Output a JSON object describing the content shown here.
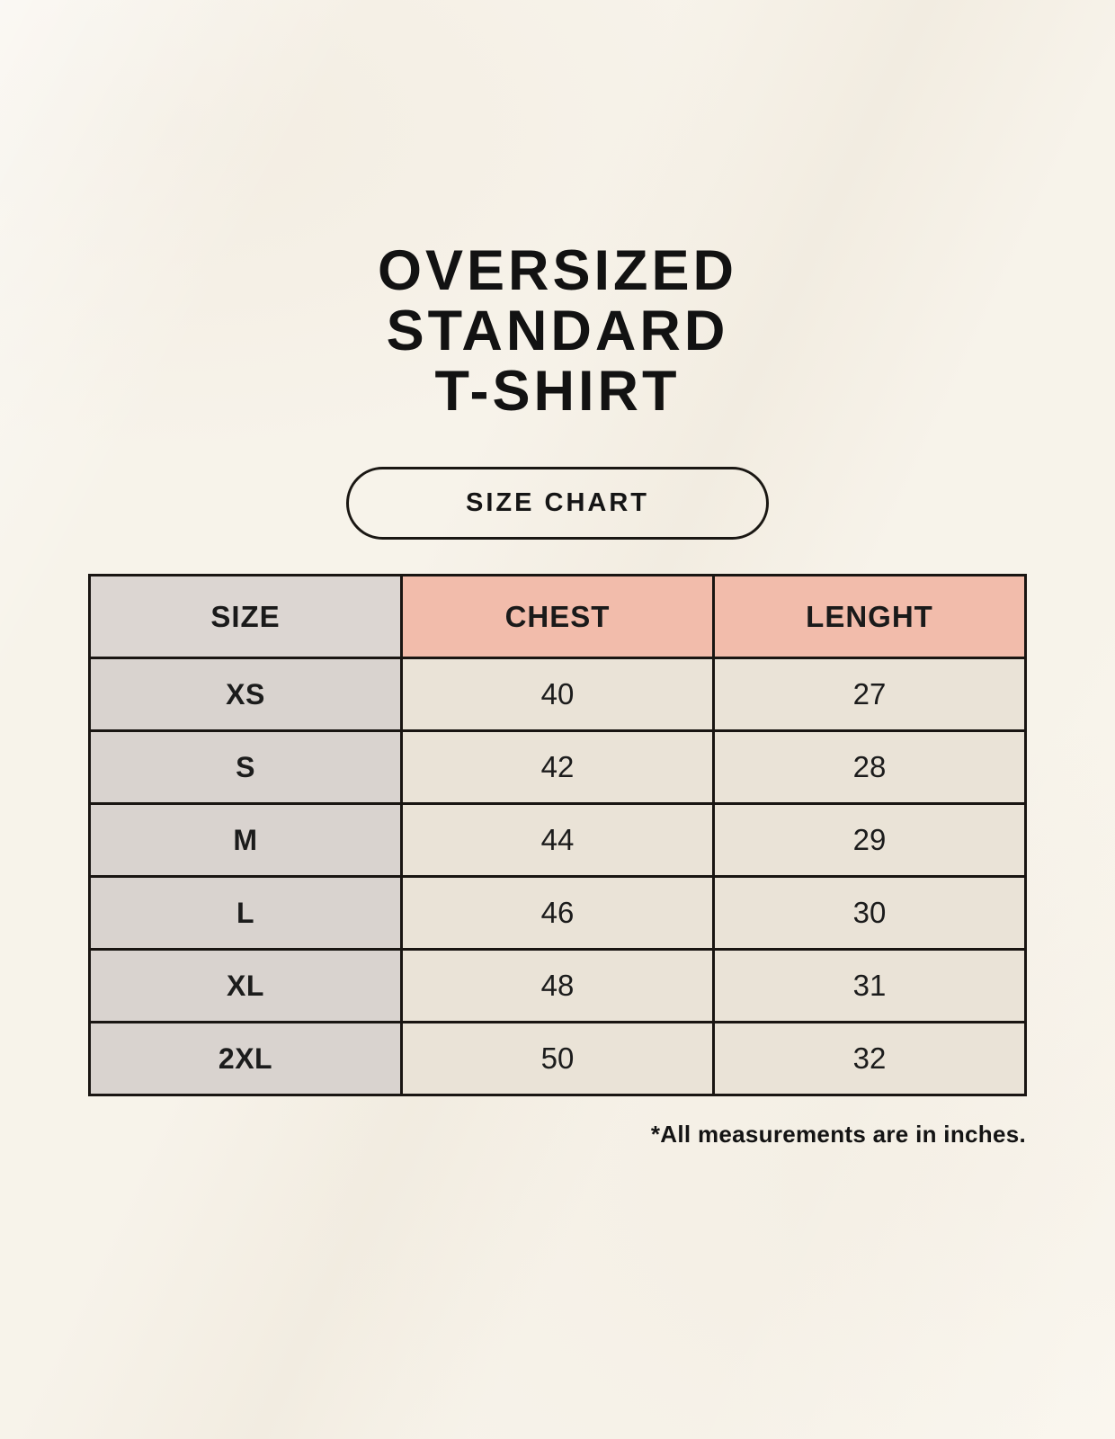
{
  "header": {
    "title_lines": [
      "OVERSIZED",
      "STANDARD",
      "T-SHIRT"
    ],
    "size_chart_label": "SIZE CHART"
  },
  "table": {
    "columns": [
      "SIZE",
      "CHEST",
      "LENGHT"
    ],
    "rows": [
      [
        "XS",
        "40",
        "27"
      ],
      [
        "S",
        "42",
        "28"
      ],
      [
        "M",
        "44",
        "29"
      ],
      [
        "L",
        "46",
        "30"
      ],
      [
        "XL",
        "48",
        "31"
      ],
      [
        "2XL",
        "50",
        "32"
      ]
    ],
    "units_note": "*All measurements are in inches."
  },
  "colors": {
    "background": "#f7f3ea",
    "table_border": "#191512",
    "size_header_bg": "#dcd6d2",
    "accent_header_bg": "#f2bcab",
    "size_column_bg": "#d9d3cf",
    "cell_bg": "#eae3d7",
    "text": "#141414"
  }
}
